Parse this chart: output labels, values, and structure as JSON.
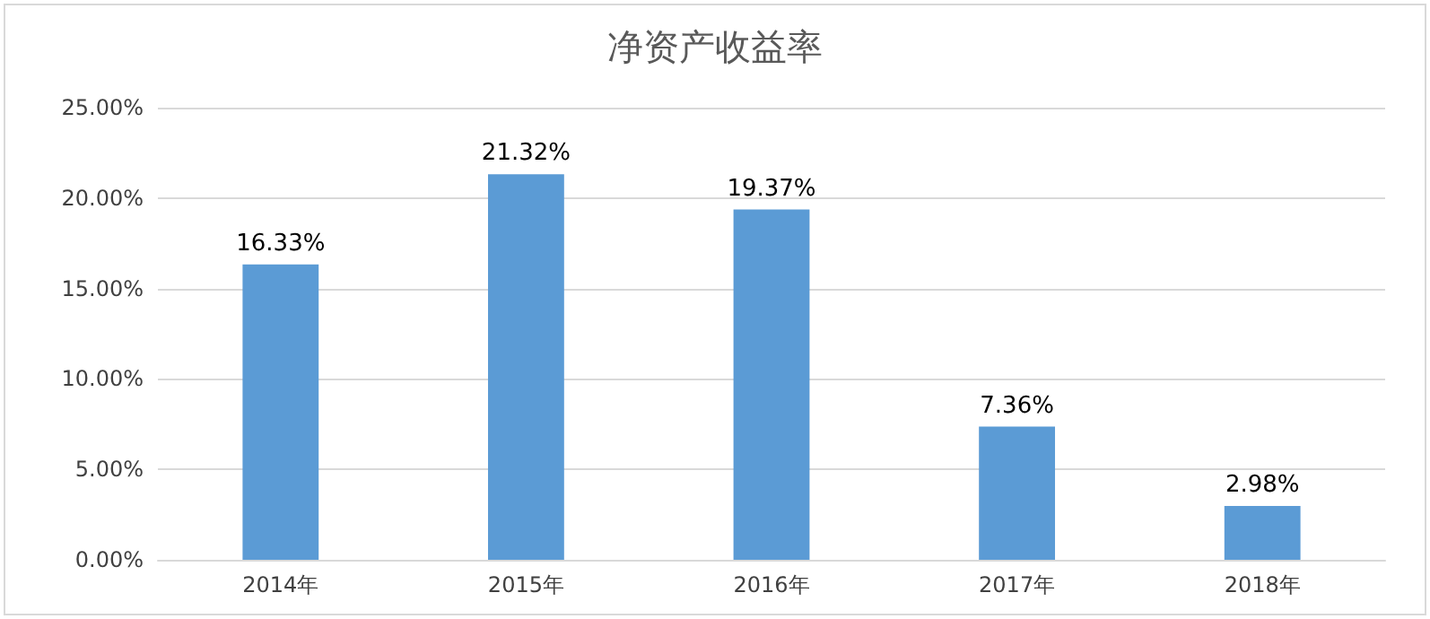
{
  "chart_data": {
    "type": "bar",
    "title": "净资产收益率",
    "categories": [
      "2014年",
      "2015年",
      "2016年",
      "2017年",
      "2018年"
    ],
    "values": [
      16.33,
      21.32,
      19.37,
      7.36,
      2.98
    ],
    "value_labels": [
      "16.33%",
      "21.32%",
      "19.37%",
      "7.36%",
      "2.98%"
    ],
    "color": "#5b9bd5",
    "ylim": [
      0,
      25
    ],
    "yticks": [
      {
        "value": 0,
        "label": "0.00%"
      },
      {
        "value": 5,
        "label": "5.00%"
      },
      {
        "value": 10,
        "label": "10.00%"
      },
      {
        "value": 15,
        "label": "15.00%"
      },
      {
        "value": 20,
        "label": "20.00%"
      },
      {
        "value": 25,
        "label": "25.00%"
      }
    ],
    "grid": "y"
  }
}
